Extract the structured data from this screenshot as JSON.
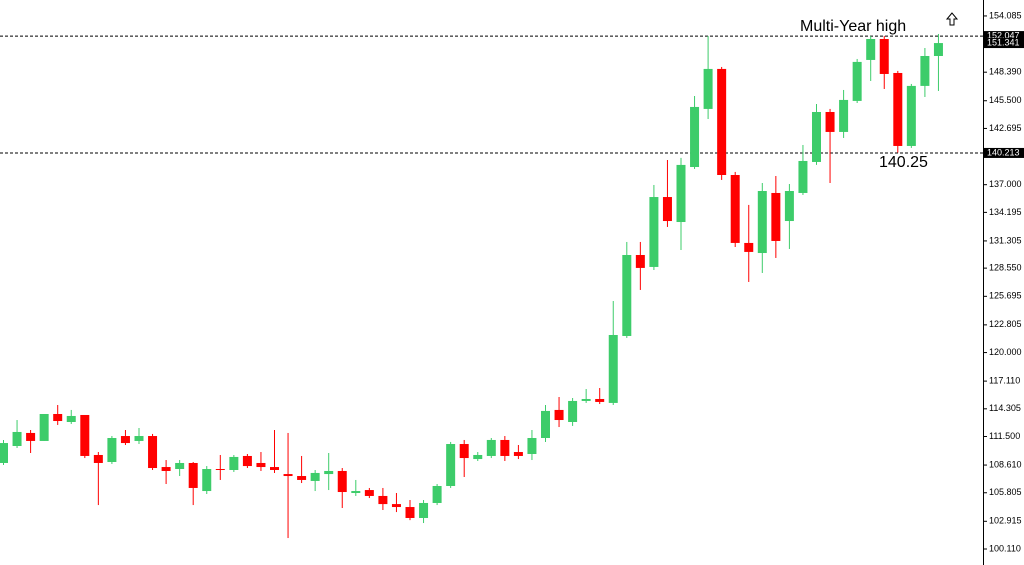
{
  "chart_data": {
    "type": "candlestick",
    "open": [
      108.82,
      110.54,
      111.86,
      111.05,
      113.78,
      112.97,
      113.68,
      109.63,
      108.92,
      111.55,
      111.05,
      111.55,
      108.41,
      108.21,
      108.82,
      105.98,
      108.21,
      108.11,
      109.53,
      108.82,
      108.41,
      107.7,
      107.5,
      107.0,
      107.7,
      108.01,
      105.78,
      106.08,
      105.48,
      104.66,
      104.36,
      103.25,
      104.77,
      106.49,
      110.74,
      109.22,
      109.53,
      111.15,
      109.93,
      109.73,
      111.35,
      114.19,
      112.97,
      115.1,
      115.3,
      114.9,
      121.68,
      129.88,
      128.67,
      135.75,
      133.22,
      138.79,
      144.67,
      148.72,
      137.98,
      131.1,
      130.08,
      136.16,
      133.32,
      136.16,
      139.3,
      144.36,
      142.34,
      145.48,
      149.63,
      151.75,
      148.31,
      140.92,
      147.0,
      150.03
    ],
    "high": [
      111.15,
      113.17,
      112.16,
      113.78,
      114.69,
      114.19,
      113.68,
      109.93,
      111.55,
      112.16,
      112.36,
      111.76,
      109.12,
      109.12,
      108.92,
      108.51,
      109.63,
      109.63,
      109.73,
      109.93,
      112.16,
      111.86,
      109.53,
      108.11,
      109.83,
      108.31,
      107.1,
      106.29,
      106.29,
      105.78,
      105.07,
      105.07,
      106.69,
      110.95,
      111.15,
      109.93,
      111.35,
      111.55,
      110.64,
      112.16,
      114.69,
      115.5,
      115.4,
      116.31,
      116.41,
      125.22,
      131.2,
      131.2,
      136.97,
      139.5,
      139.71,
      145.98,
      152.06,
      148.92,
      138.29,
      134.95,
      137.17,
      137.88,
      137.07,
      141.02,
      145.17,
      144.67,
      146.59,
      149.73,
      152.06,
      152.06,
      148.52,
      147.2,
      150.84,
      152.26
    ],
    "low": [
      108.62,
      110.34,
      109.83,
      111.05,
      112.67,
      112.77,
      109.32,
      104.56,
      108.72,
      110.64,
      110.74,
      108.11,
      106.69,
      107.5,
      104.56,
      105.68,
      107.1,
      107.91,
      108.31,
      108.01,
      107.81,
      101.22,
      106.79,
      105.98,
      106.08,
      104.26,
      105.48,
      105.27,
      104.06,
      103.85,
      103.04,
      102.74,
      104.56,
      106.29,
      107.4,
      109.02,
      109.32,
      109.02,
      109.22,
      109.12,
      110.95,
      112.46,
      112.57,
      114.9,
      114.79,
      114.69,
      121.48,
      126.34,
      128.36,
      132.72,
      130.39,
      138.59,
      143.65,
      137.48,
      130.69,
      127.15,
      128.06,
      129.58,
      130.49,
      135.96,
      139.0,
      137.17,
      141.73,
      145.27,
      147.5,
      146.69,
      140.25,
      140.72,
      145.88,
      146.49
    ],
    "close": [
      110.84,
      111.96,
      111.05,
      113.78,
      113.07,
      113.58,
      109.53,
      108.82,
      111.35,
      110.84,
      111.55,
      108.31,
      108.01,
      108.82,
      106.29,
      108.21,
      108.11,
      109.43,
      108.51,
      108.41,
      108.11,
      107.5,
      107.1,
      107.81,
      108.01,
      105.88,
      105.98,
      105.48,
      104.66,
      104.36,
      103.25,
      104.77,
      106.49,
      110.74,
      109.32,
      109.63,
      111.15,
      109.53,
      109.53,
      111.35,
      114.09,
      113.17,
      115.1,
      115.3,
      115.0,
      121.78,
      129.88,
      128.57,
      135.75,
      133.32,
      139.0,
      144.87,
      148.72,
      137.98,
      131.1,
      130.19,
      136.36,
      131.3,
      136.36,
      139.4,
      144.36,
      142.34,
      145.58,
      149.43,
      151.75,
      148.21,
      140.92,
      147.0,
      150.03,
      151.34
    ],
    "up_color": "#3dcc6a",
    "down_color": "#ff0000",
    "ylim": [
      98.49,
      155.7
    ],
    "yticks": [
      154.085,
      {
        "value": 148.39,
        "label": "148.390"
      },
      {
        "value": 145.5,
        "label": "145.500"
      },
      142.695,
      {
        "value": 137,
        "label": "137.000"
      },
      134.195,
      131.305,
      {
        "value": 128.55,
        "label": "128.550"
      },
      125.695,
      122.805,
      {
        "value": 120,
        "label": "120.000"
      },
      {
        "value": 117.11,
        "label": "117.110"
      },
      114.305,
      {
        "value": 111.5,
        "label": "111.500"
      },
      {
        "value": 108.61,
        "label": "108.610"
      },
      105.805,
      102.915,
      {
        "value": 100.11,
        "label": "100.110"
      }
    ],
    "hlines": [
      152.047,
      140.213
    ],
    "last_price": 151.341,
    "annotations": [
      "Multi-Year high",
      "140.25"
    ]
  }
}
